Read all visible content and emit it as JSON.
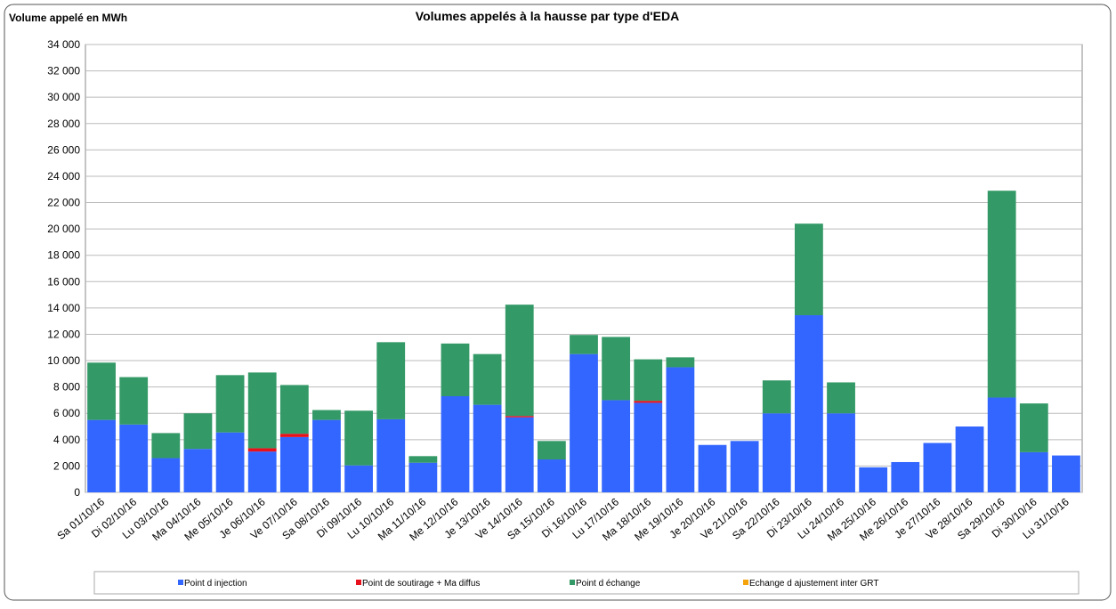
{
  "chart_data": {
    "type": "stacked_bar",
    "title": "Volumes appelés à la hausse par type d'EDA",
    "y_axis_label": "Volume appelé en MWh",
    "categories": [
      "Sa 01/10/16",
      "Di 02/10/16",
      "Lu 03/10/16",
      "Ma 04/10/16",
      "Me 05/10/16",
      "Je 06/10/16",
      "Ve 07/10/16",
      "Sa 08/10/16",
      "Di 09/10/16",
      "Lu 10/10/16",
      "Ma 11/10/16",
      "Me 12/10/16",
      "Je 13/10/16",
      "Ve 14/10/16",
      "Sa 15/10/16",
      "Di 16/10/16",
      "Lu 17/10/16",
      "Ma 18/10/16",
      "Me 19/10/16",
      "Je 20/10/16",
      "Ve 21/10/16",
      "Sa 22/10/16",
      "Di 23/10/16",
      "Lu 24/10/16",
      "Ma 25/10/16",
      "Me 26/10/16",
      "Je 27/10/16",
      "Ve 28/10/16",
      "Sa 29/10/16",
      "Di 30/10/16",
      "Lu 31/10/16"
    ],
    "series": [
      {
        "name": "Point d injection",
        "color": "#3366ff",
        "values": [
          5500,
          5150,
          2600,
          3300,
          4550,
          3100,
          4200,
          5500,
          2050,
          5550,
          2250,
          7300,
          6650,
          5700,
          2500,
          10500,
          7000,
          6800,
          9500,
          3600,
          3900,
          6000,
          13450,
          6000,
          1900,
          2300,
          3750,
          5000,
          7200,
          3050,
          2800
        ]
      },
      {
        "name": "Point de soutirage + Ma diffus",
        "color": "#e8101a",
        "values": [
          0,
          0,
          0,
          0,
          0,
          250,
          250,
          0,
          0,
          0,
          0,
          0,
          0,
          100,
          0,
          0,
          0,
          150,
          0,
          0,
          0,
          0,
          0,
          0,
          0,
          0,
          0,
          0,
          0,
          0,
          0
        ]
      },
      {
        "name": "Point d échange",
        "color": "#339966",
        "values": [
          4350,
          3600,
          1900,
          2700,
          4350,
          5750,
          3700,
          750,
          4150,
          5850,
          500,
          4000,
          3850,
          8450,
          1400,
          1450,
          4800,
          3150,
          750,
          0,
          0,
          2500,
          6950,
          2350,
          0,
          0,
          0,
          0,
          15700,
          3700,
          0
        ]
      },
      {
        "name": "Echange d ajustement inter GRT",
        "color": "#f5a30a",
        "values": [
          0,
          0,
          0,
          0,
          0,
          0,
          0,
          0,
          0,
          0,
          0,
          0,
          0,
          0,
          0,
          0,
          0,
          0,
          0,
          0,
          0,
          0,
          0,
          0,
          0,
          0,
          0,
          0,
          0,
          0,
          0
        ]
      }
    ],
    "ylim": [
      0,
      34000
    ],
    "yticks": [
      0,
      {
        "value": 2000,
        "label": "2 000"
      },
      {
        "value": 4000,
        "label": "4 000"
      },
      {
        "value": 6000,
        "label": "6 000"
      },
      {
        "value": 8000,
        "label": "8 000"
      },
      {
        "value": 10000,
        "label": "10 000"
      },
      {
        "value": 12000,
        "label": "12 000"
      },
      {
        "value": 14000,
        "label": "14 000"
      },
      {
        "value": 16000,
        "label": "16 000"
      },
      {
        "value": 18000,
        "label": "18 000"
      },
      {
        "value": 20000,
        "label": "20 000"
      },
      {
        "value": 22000,
        "label": "22 000"
      },
      {
        "value": 24000,
        "label": "24 000"
      },
      {
        "value": 26000,
        "label": "26 000"
      },
      {
        "value": 28000,
        "label": "28 000"
      },
      {
        "value": 30000,
        "label": "30 000"
      },
      {
        "value": 32000,
        "label": "32 000"
      },
      {
        "value": 34000,
        "label": "34 000"
      }
    ],
    "grid": true
  }
}
